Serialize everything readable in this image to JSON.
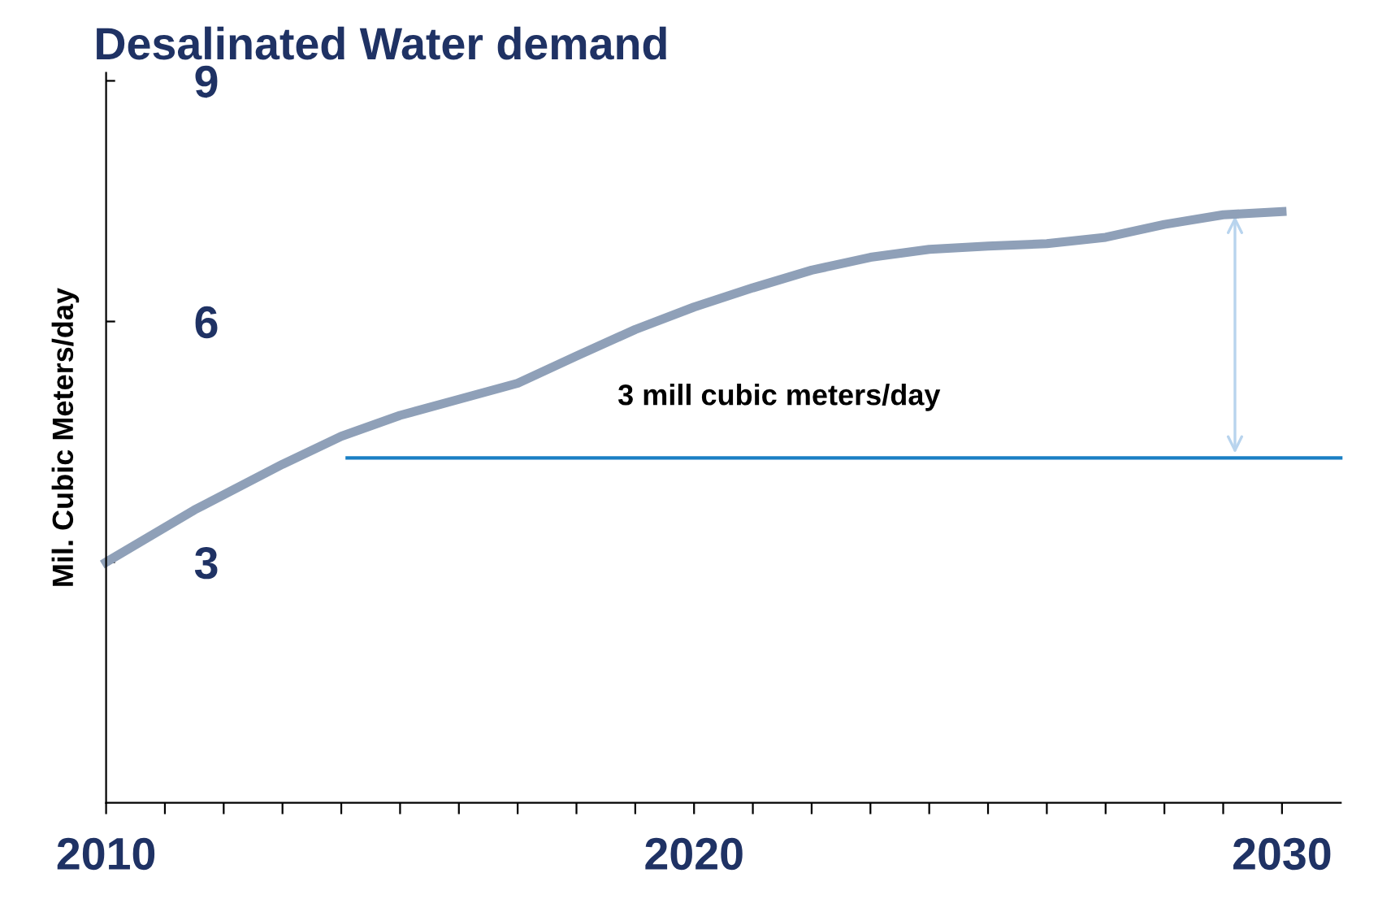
{
  "chart_data": {
    "type": "line",
    "title": "Desalinated Water demand",
    "ylabel": "Mil. Cubic Meters/day",
    "annotations": [
      "3 mill cubic meters/day"
    ],
    "series": [
      {
        "color": "#8fa0b8",
        "x": [
          2010,
          2011.5,
          2013,
          2014,
          2015,
          2016,
          2017,
          2018,
          2019,
          2020,
          2021,
          2022,
          2023,
          2024,
          2025,
          2026,
          2027,
          2028,
          2029,
          2030
        ],
        "values": [
          3.0,
          3.65,
          4.22,
          4.57,
          4.83,
          5.03,
          5.23,
          5.57,
          5.9,
          6.18,
          6.42,
          6.64,
          6.8,
          6.9,
          6.94,
          6.97,
          7.05,
          7.21,
          7.33,
          7.37
        ]
      },
      {
        "color": "#1a7fc4",
        "x": [
          2014.1,
          2031
        ],
        "values": [
          4.3,
          4.3
        ]
      }
    ],
    "xlim": [
      2010,
      2031
    ],
    "ylim": [
      0,
      9.1
    ],
    "xticks": [
      2010,
      {
        "value": 2011,
        "label": null
      },
      {
        "value": 2012,
        "label": null
      },
      {
        "value": 2013,
        "label": null
      },
      {
        "value": 2014,
        "label": null
      },
      {
        "value": 2015,
        "label": null
      },
      {
        "value": 2016,
        "label": null
      },
      {
        "value": 2017,
        "label": null
      },
      {
        "value": 2018,
        "label": null
      },
      {
        "value": 2019,
        "label": null
      },
      2020,
      {
        "value": 2021,
        "label": null
      },
      {
        "value": 2022,
        "label": null
      },
      {
        "value": 2023,
        "label": null
      },
      {
        "value": 2024,
        "label": null
      },
      {
        "value": 2025,
        "label": null
      },
      {
        "value": 2026,
        "label": null
      },
      {
        "value": 2027,
        "label": null
      },
      {
        "value": 2028,
        "label": null
      },
      {
        "value": 2029,
        "label": null
      },
      2030
    ],
    "yticks": [
      3,
      6,
      9
    ],
    "grid": false,
    "legend": false,
    "marker": "none",
    "line_style": "solid"
  }
}
